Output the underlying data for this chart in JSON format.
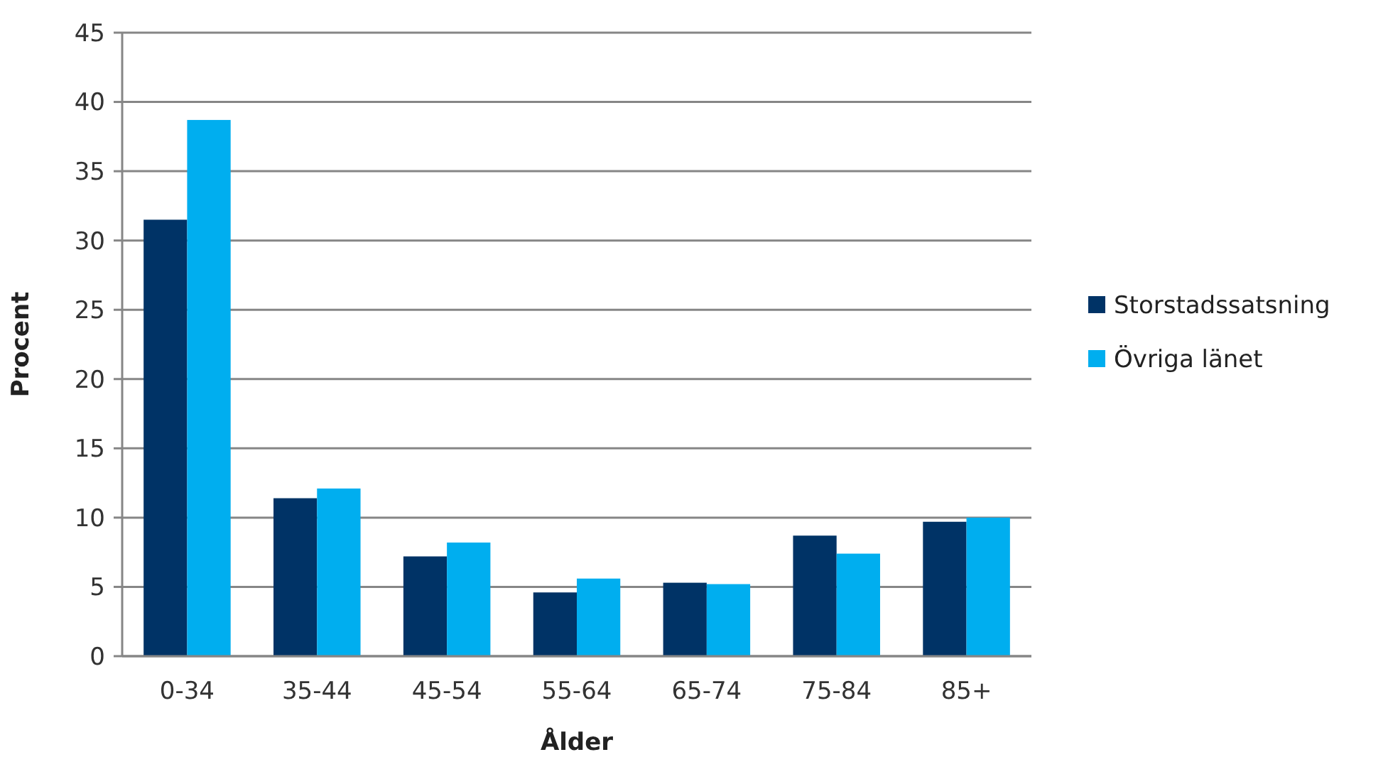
{
  "chart_data": {
    "type": "bar",
    "xlabel": "Ålder",
    "ylabel": "Procent",
    "categories": [
      "0-34",
      "35-44",
      "45-54",
      "55-64",
      "65-74",
      "75-84",
      "85+"
    ],
    "series": [
      {
        "name": "Storstadssatsning",
        "color": "#003366",
        "values": [
          31.5,
          11.4,
          7.2,
          4.6,
          5.3,
          8.7,
          9.7
        ]
      },
      {
        "name": "Övriga länet",
        "color": "#00aeef",
        "values": [
          38.7,
          12.1,
          8.2,
          5.6,
          5.2,
          7.4,
          10.0
        ]
      }
    ],
    "ylim": [
      0,
      45
    ],
    "yticks": [
      0,
      5,
      10,
      15,
      20,
      25,
      30,
      35,
      40,
      45
    ],
    "grid": "y",
    "legend": "right"
  }
}
